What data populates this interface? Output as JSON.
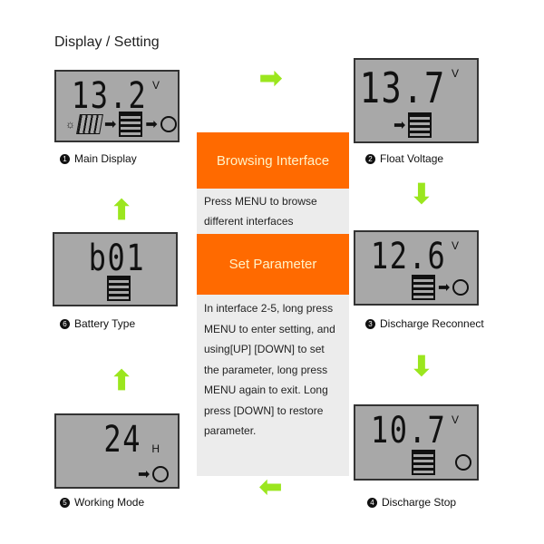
{
  "title": "Display / Setting",
  "screens": [
    {
      "number": "1",
      "label": "Main Display",
      "value": "13.2",
      "unit": "V",
      "icons": [
        "solar-panel",
        "battery",
        "load-bulb"
      ]
    },
    {
      "number": "2",
      "label": "Float Voltage",
      "value": "13.7",
      "unit": "V",
      "icons": [
        "battery"
      ]
    },
    {
      "number": "3",
      "label": "Discharge Reconnect",
      "value": "12.6",
      "unit": "V",
      "icons": [
        "battery",
        "load-bulb"
      ]
    },
    {
      "number": "4",
      "label": "Discharge Stop",
      "value": "10.7",
      "unit": "V",
      "icons": [
        "battery",
        "load-bulb"
      ]
    },
    {
      "number": "5",
      "label": "Working Mode",
      "value": "24",
      "unit": "H",
      "icons": [
        "load-bulb"
      ]
    },
    {
      "number": "6",
      "label": "Battery Type",
      "value": "b01",
      "unit": "",
      "icons": [
        "battery"
      ]
    }
  ],
  "center": {
    "browsing_title": "Browsing Interface",
    "browsing_text": "Press MENU to browse different interfaces",
    "set_title": "Set Parameter",
    "set_text": "In interface 2-5, long press MENU to enter setting, and using[UP] [DOWN] to set the parameter, long press MENU again to exit. Long press [DOWN] to restore parameter."
  },
  "colors": {
    "accent": "#ff6a00",
    "arrow": "#9be61e",
    "lcd": "#a8a8a8"
  }
}
